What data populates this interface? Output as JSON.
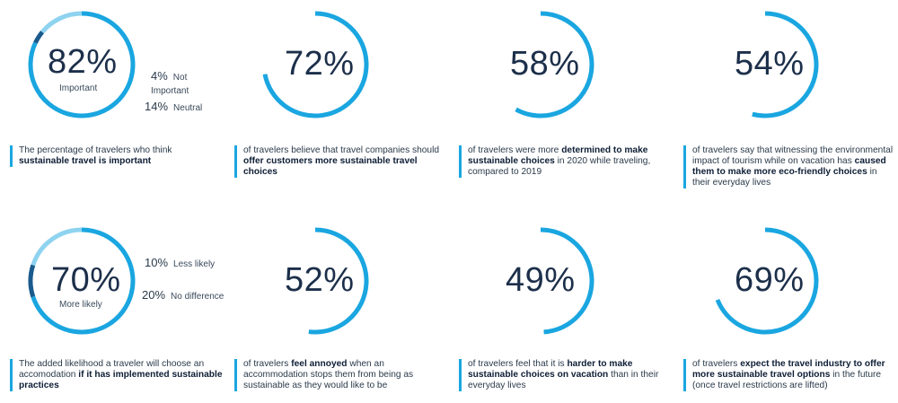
{
  "chart_data": [
    {
      "type": "pie",
      "values": [
        82,
        4,
        14
      ],
      "labels": [
        "Important",
        "Not Important",
        "Neutral"
      ],
      "center_value": "82%",
      "center_label": "Important",
      "legend": [
        {
          "value": "4%",
          "label": "Not Important"
        },
        {
          "value": "14%",
          "label": "Neutral"
        }
      ],
      "colors": [
        "#1aa6e0",
        "#1a5a8c",
        "#8ed3ef"
      ],
      "description": {
        "plain": "The percentage of travelers who think",
        "bold": "sustainable travel is important"
      }
    },
    {
      "type": "pie",
      "values": [
        72
      ],
      "center_value": "72%",
      "colors": [
        "#1aa6e0"
      ],
      "description": {
        "plain": "of travelers believe that travel companies should",
        "bold": "offer customers more sustainable travel choices"
      }
    },
    {
      "type": "pie",
      "values": [
        58
      ],
      "center_value": "58%",
      "colors": [
        "#1aa6e0"
      ],
      "description": {
        "plain": "of travelers were more",
        "bold": "determined to make sustainable choices",
        "tail": "in 2020 while traveling, compared to 2019"
      }
    },
    {
      "type": "pie",
      "values": [
        54
      ],
      "center_value": "54%",
      "colors": [
        "#1aa6e0"
      ],
      "description": {
        "plain": "of travelers say that witnessing the environmental impact of tourism while on vacation has",
        "bold": "caused them to make more eco-friendly choices",
        "tail": "in their everyday lives"
      }
    },
    {
      "type": "pie",
      "values": [
        70,
        10,
        20
      ],
      "labels": [
        "More likely",
        "Less likely",
        "No difference"
      ],
      "center_value": "70%",
      "center_label": "More likely",
      "legend": [
        {
          "value": "10%",
          "label": "Less likely"
        },
        {
          "value": "20%",
          "label": "No difference"
        }
      ],
      "colors": [
        "#1aa6e0",
        "#1a5a8c",
        "#8ed3ef"
      ],
      "description": {
        "plain": "The added likelihood a traveler will choose an accomodation",
        "bold": "if it has implemented sustainable practices"
      }
    },
    {
      "type": "pie",
      "values": [
        52
      ],
      "center_value": "52%",
      "colors": [
        "#1aa6e0"
      ],
      "description": {
        "plain": "of travelers",
        "bold": "feel annoyed",
        "tail": "when an accommodation stops them from being as sustainable as they would like to be"
      }
    },
    {
      "type": "pie",
      "values": [
        49
      ],
      "center_value": "49%",
      "colors": [
        "#1aa6e0"
      ],
      "description": {
        "plain": "of travelers feel that it is",
        "bold": "harder to make sustainable choices on vacation",
        "tail": "than in their everyday lives"
      }
    },
    {
      "type": "pie",
      "values": [
        69
      ],
      "center_value": "69%",
      "colors": [
        "#1aa6e0"
      ],
      "description": {
        "plain": "of travelers",
        "bold": "expect the travel industry to offer more sustainable travel options",
        "tail": "in the future (once travel restrictions are lifted)"
      }
    }
  ]
}
